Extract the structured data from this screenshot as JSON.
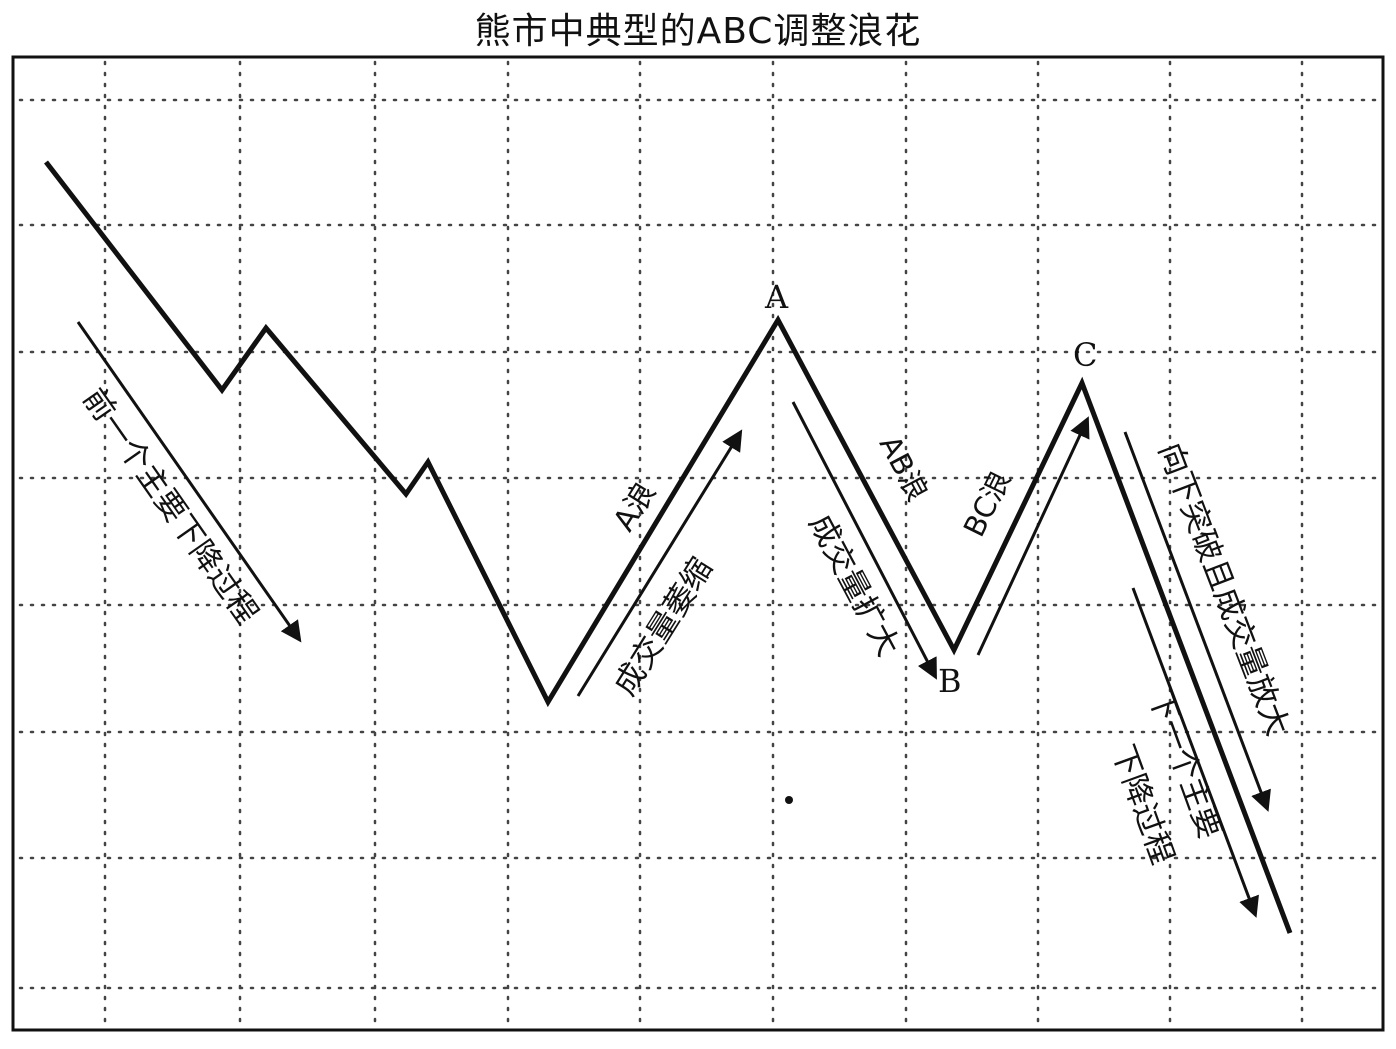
{
  "title": "熊市中典型的ABC调整浪花",
  "points": {
    "A": "A",
    "B": "B",
    "C": "C"
  },
  "annotations": {
    "previous_decline": "前一个主要下降过程",
    "wave_a": "A浪",
    "volume_shrink": "成交量萎缩",
    "wave_ab": "AB浪",
    "volume_expand": "成交量扩大",
    "wave_bc": "BC浪",
    "break_down": "向下突破且成交量放大",
    "next_decline_line1": "下一个主要",
    "next_decline_line2": "下降过程"
  }
}
